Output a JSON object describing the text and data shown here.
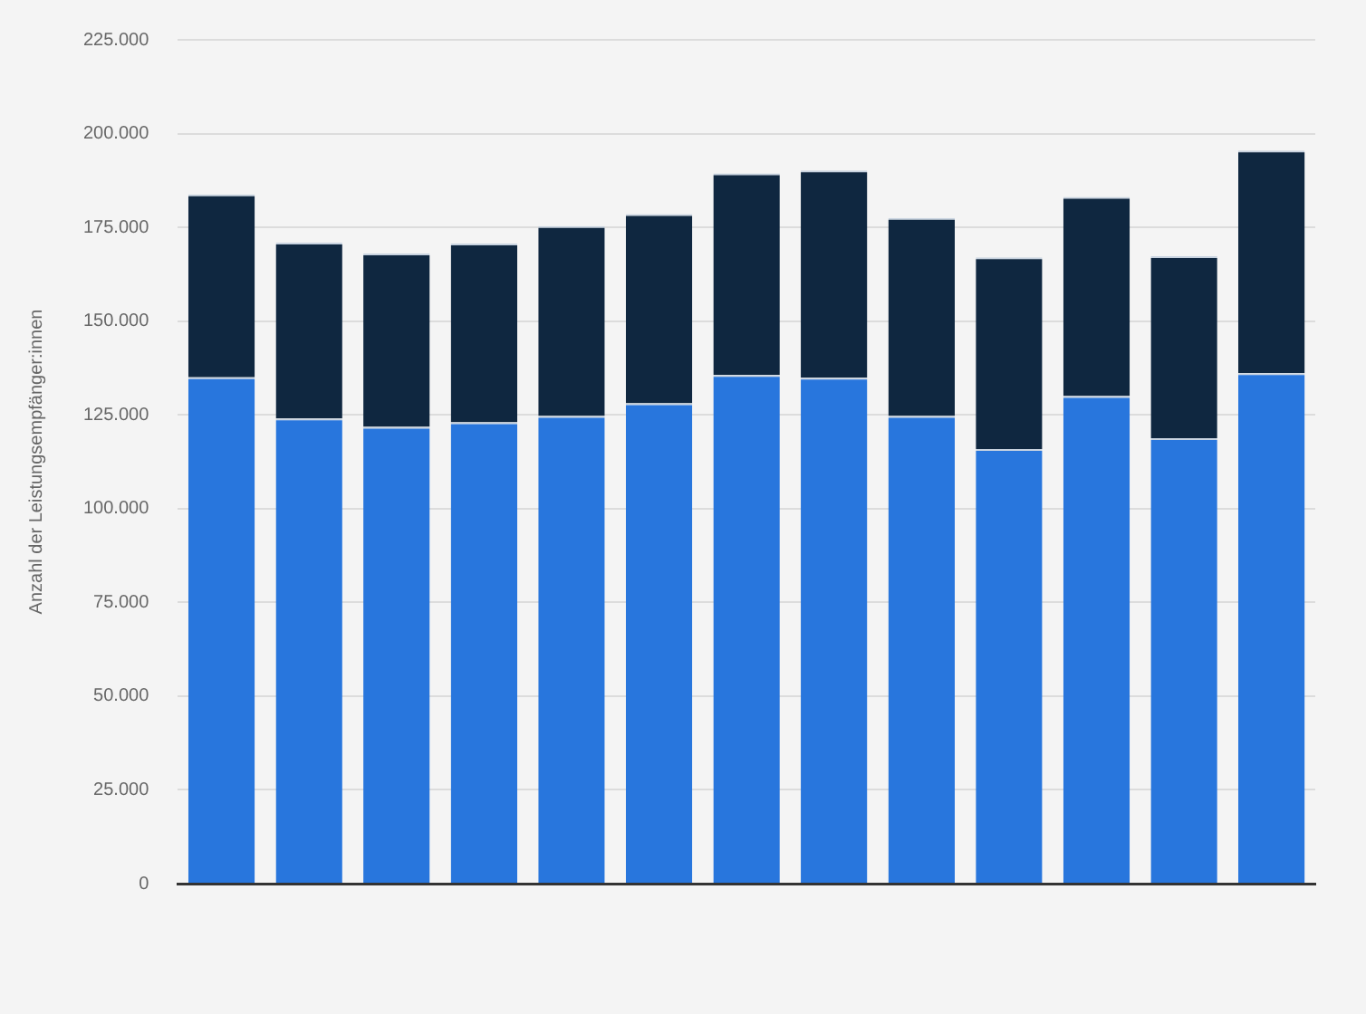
{
  "chart_data": {
    "type": "bar",
    "stacked": true,
    "ylabel": "Anzahl der Leistungsempfänger:innen",
    "categories": [
      null,
      null,
      null,
      null,
      null,
      null,
      null,
      null,
      null,
      null,
      null,
      null,
      null
    ],
    "series": [
      {
        "color": "#2876dd",
        "values": [
          135000,
          124000,
          121800,
          123000,
          124700,
          128100,
          135600,
          134900,
          124700,
          115900,
          130000,
          118800,
          136100
        ]
      },
      {
        "color": "#0f2740",
        "values": [
          48800,
          46900,
          46200,
          47700,
          50600,
          50400,
          53800,
          55300,
          52800,
          51100,
          53100,
          48500,
          59400
        ]
      }
    ],
    "ylim": [
      0,
      225000
    ],
    "yticks": [
      {
        "value": 0,
        "label": "0"
      },
      {
        "value": 25000,
        "label": "25.000"
      },
      {
        "value": 50000,
        "label": "50.000"
      },
      {
        "value": 75000,
        "label": "75.000"
      },
      {
        "value": 100000,
        "label": "100.000"
      },
      {
        "value": 125000,
        "label": "125.000"
      },
      {
        "value": 150000,
        "label": "150.000"
      },
      {
        "value": 175000,
        "label": "175.000"
      },
      {
        "value": 200000,
        "label": "200.000"
      },
      {
        "value": 225000,
        "label": "225.000"
      }
    ],
    "grid": "y",
    "tick_labels": "y",
    "legend": false
  }
}
